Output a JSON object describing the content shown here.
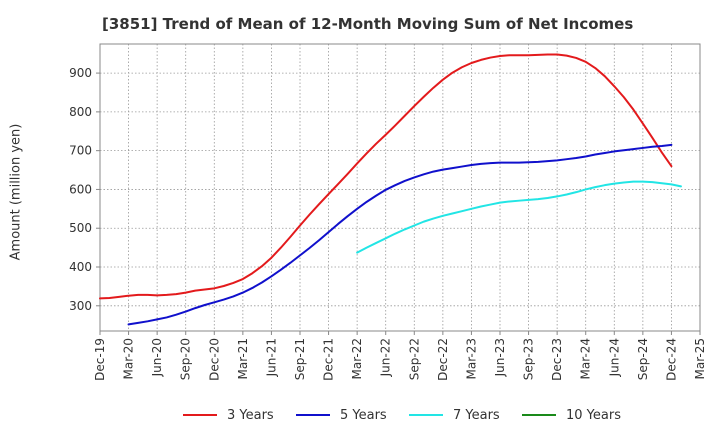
{
  "chart_data": {
    "type": "line",
    "title": "[3851]  Trend of Mean of 12-Month Moving Sum of Net Incomes",
    "ylabel": "Amount (million yen)",
    "xlabel": "",
    "x_tick_labels": [
      "Dec-19",
      "Mar-20",
      "Jun-20",
      "Sep-20",
      "Dec-20",
      "Mar-21",
      "Jun-21",
      "Sep-21",
      "Dec-21",
      "Mar-22",
      "Jun-22",
      "Sep-22",
      "Dec-22",
      "Mar-23",
      "Jun-23",
      "Sep-23",
      "Dec-23",
      "Mar-24",
      "Jun-24",
      "Sep-24",
      "Dec-24",
      "Mar-25"
    ],
    "y_ticks": [
      300,
      400,
      500,
      600,
      700,
      800,
      900
    ],
    "ylim": [
      235,
      975
    ],
    "grid": true,
    "legend_position": "bottom",
    "series": [
      {
        "name": "3 Years",
        "color": "#e31a1c",
        "points": [
          [
            "Dec-19",
            319
          ],
          [
            "Jan-20",
            320
          ],
          [
            "Feb-20",
            323
          ],
          [
            "Mar-20",
            326
          ],
          [
            "Apr-20",
            328
          ],
          [
            "May-20",
            328
          ],
          [
            "Jun-20",
            327
          ],
          [
            "Jul-20",
            328
          ],
          [
            "Aug-20",
            330
          ],
          [
            "Sep-20",
            334
          ],
          [
            "Oct-20",
            339
          ],
          [
            "Nov-20",
            342
          ],
          [
            "Dec-20",
            345
          ],
          [
            "Jan-21",
            351
          ],
          [
            "Feb-21",
            359
          ],
          [
            "Mar-21",
            369
          ],
          [
            "Apr-21",
            384
          ],
          [
            "May-21",
            402
          ],
          [
            "Jun-21",
            424
          ],
          [
            "Jul-21",
            450
          ],
          [
            "Aug-21",
            478
          ],
          [
            "Sep-21",
            507
          ],
          [
            "Oct-21",
            535
          ],
          [
            "Nov-21",
            562
          ],
          [
            "Dec-21",
            588
          ],
          [
            "Jan-22",
            614
          ],
          [
            "Feb-22",
            640
          ],
          [
            "Mar-22",
            667
          ],
          [
            "Apr-22",
            693
          ],
          [
            "May-22",
            718
          ],
          [
            "Jun-22",
            741
          ],
          [
            "Jul-22",
            765
          ],
          [
            "Aug-22",
            790
          ],
          [
            "Sep-22",
            815
          ],
          [
            "Oct-22",
            839
          ],
          [
            "Nov-22",
            862
          ],
          [
            "Dec-22",
            883
          ],
          [
            "Jan-23",
            901
          ],
          [
            "Feb-23",
            915
          ],
          [
            "Mar-23",
            926
          ],
          [
            "Apr-23",
            934
          ],
          [
            "May-23",
            940
          ],
          [
            "Jun-23",
            944
          ],
          [
            "Jul-23",
            946
          ],
          [
            "Aug-23",
            946
          ],
          [
            "Sep-23",
            946
          ],
          [
            "Oct-23",
            947
          ],
          [
            "Nov-23",
            948
          ],
          [
            "Dec-23",
            948
          ],
          [
            "Jan-24",
            945
          ],
          [
            "Feb-24",
            939
          ],
          [
            "Mar-24",
            929
          ],
          [
            "Apr-24",
            913
          ],
          [
            "May-24",
            892
          ],
          [
            "Jun-24",
            866
          ],
          [
            "Jul-24",
            838
          ],
          [
            "Aug-24",
            806
          ],
          [
            "Sep-24",
            770
          ],
          [
            "Oct-24",
            733
          ],
          [
            "Nov-24",
            695
          ],
          [
            "Dec-24",
            660
          ]
        ]
      },
      {
        "name": "5 Years",
        "color": "#1010cc",
        "points": [
          [
            "Mar-20",
            252
          ],
          [
            "Apr-20",
            256
          ],
          [
            "May-20",
            260
          ],
          [
            "Jun-20",
            265
          ],
          [
            "Jul-20",
            270
          ],
          [
            "Aug-20",
            277
          ],
          [
            "Sep-20",
            285
          ],
          [
            "Oct-20",
            294
          ],
          [
            "Nov-20",
            302
          ],
          [
            "Dec-20",
            309
          ],
          [
            "Jan-21",
            316
          ],
          [
            "Feb-21",
            324
          ],
          [
            "Mar-21",
            334
          ],
          [
            "Apr-21",
            346
          ],
          [
            "May-21",
            360
          ],
          [
            "Jun-21",
            376
          ],
          [
            "Jul-21",
            393
          ],
          [
            "Aug-21",
            411
          ],
          [
            "Sep-21",
            430
          ],
          [
            "Oct-21",
            449
          ],
          [
            "Nov-21",
            469
          ],
          [
            "Dec-21",
            490
          ],
          [
            "Jan-22",
            511
          ],
          [
            "Feb-22",
            531
          ],
          [
            "Mar-22",
            550
          ],
          [
            "Apr-22",
            568
          ],
          [
            "May-22",
            584
          ],
          [
            "Jun-22",
            599
          ],
          [
            "Jul-22",
            611
          ],
          [
            "Aug-22",
            622
          ],
          [
            "Sep-22",
            631
          ],
          [
            "Oct-22",
            639
          ],
          [
            "Nov-22",
            646
          ],
          [
            "Dec-22",
            651
          ],
          [
            "Jan-23",
            655
          ],
          [
            "Feb-23",
            659
          ],
          [
            "Mar-23",
            663
          ],
          [
            "Apr-23",
            666
          ],
          [
            "May-23",
            668
          ],
          [
            "Jun-23",
            669
          ],
          [
            "Jul-23",
            669
          ],
          [
            "Aug-23",
            669
          ],
          [
            "Sep-23",
            670
          ],
          [
            "Oct-23",
            671
          ],
          [
            "Nov-23",
            673
          ],
          [
            "Dec-23",
            675
          ],
          [
            "Jan-24",
            678
          ],
          [
            "Feb-24",
            681
          ],
          [
            "Mar-24",
            685
          ],
          [
            "Apr-24",
            690
          ],
          [
            "May-24",
            694
          ],
          [
            "Jun-24",
            698
          ],
          [
            "Jul-24",
            701
          ],
          [
            "Aug-24",
            704
          ],
          [
            "Sep-24",
            707
          ],
          [
            "Oct-24",
            710
          ],
          [
            "Nov-24",
            712
          ],
          [
            "Dec-24",
            715
          ]
        ]
      },
      {
        "name": "7 Years",
        "color": "#22e5e5",
        "points": [
          [
            "Mar-22",
            437
          ],
          [
            "Apr-22",
            450
          ],
          [
            "May-22",
            462
          ],
          [
            "Jun-22",
            474
          ],
          [
            "Jul-22",
            486
          ],
          [
            "Aug-22",
            497
          ],
          [
            "Sep-22",
            507
          ],
          [
            "Oct-22",
            517
          ],
          [
            "Nov-22",
            525
          ],
          [
            "Dec-22",
            532
          ],
          [
            "Jan-23",
            538
          ],
          [
            "Feb-23",
            544
          ],
          [
            "Mar-23",
            550
          ],
          [
            "Apr-23",
            556
          ],
          [
            "May-23",
            561
          ],
          [
            "Jun-23",
            566
          ],
          [
            "Jul-23",
            569
          ],
          [
            "Aug-23",
            571
          ],
          [
            "Sep-23",
            573
          ],
          [
            "Oct-23",
            575
          ],
          [
            "Nov-23",
            578
          ],
          [
            "Dec-23",
            582
          ],
          [
            "Jan-24",
            587
          ],
          [
            "Feb-24",
            593
          ],
          [
            "Mar-24",
            600
          ],
          [
            "Apr-24",
            606
          ],
          [
            "May-24",
            611
          ],
          [
            "Jun-24",
            615
          ],
          [
            "Jul-24",
            618
          ],
          [
            "Aug-24",
            620
          ],
          [
            "Sep-24",
            620
          ],
          [
            "Oct-24",
            619
          ],
          [
            "Nov-24",
            616
          ],
          [
            "Dec-24",
            613
          ],
          [
            "Jan-25",
            608
          ]
        ]
      },
      {
        "name": "10 Years",
        "color": "#1a8a1a",
        "points": []
      }
    ]
  }
}
